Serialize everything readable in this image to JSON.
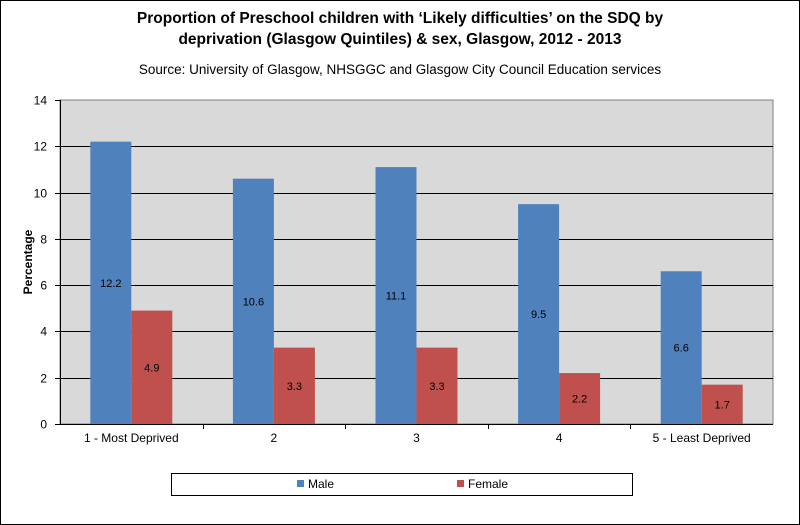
{
  "chart_data": {
    "type": "bar",
    "title_lines": [
      "Proportion of Preschool children with ‘Likely difficulties’ on the SDQ  by",
      "deprivation (Glasgow Quintiles) & sex, Glasgow, 2012 - 2013"
    ],
    "subtitle": "Source: University of Glasgow, NHSGGC and Glasgow City Council Education services",
    "xlabel": "",
    "ylabel": "Percentage",
    "ylim": [
      0,
      14
    ],
    "yticks": [
      "0",
      "2",
      "4",
      "6",
      "8",
      "10",
      "12",
      "14"
    ],
    "grid": true,
    "legend_position": "bottom",
    "categories": [
      "1 - Most Deprived",
      "2",
      "3",
      "4",
      "5 - Least Deprived"
    ],
    "series": [
      {
        "name": "Male",
        "color": "#4f81bd",
        "values": [
          12.2,
          10.6,
          11.1,
          9.5,
          6.6
        ],
        "labels": [
          "12.2",
          "10.6",
          "11.1",
          "9.5",
          "6.6"
        ]
      },
      {
        "name": "Female",
        "color": "#c0504d",
        "values": [
          4.9,
          3.3,
          3.3,
          2.2,
          1.7
        ],
        "labels": [
          "4.9",
          "3.3",
          "3.3",
          "2.2",
          "1.7"
        ]
      }
    ]
  }
}
